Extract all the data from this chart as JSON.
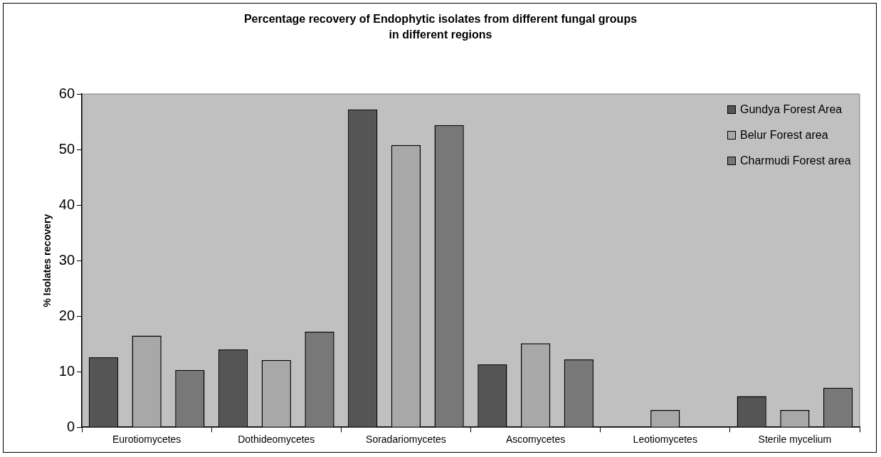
{
  "chart_data": {
    "type": "bar",
    "title": "Percentage recovery of Endophytic isolates from different fungal groups in different regions",
    "ylabel": "% Isolates recovery",
    "categories": [
      "Eurotiomycetes",
      "Dothideomycetes",
      "Soradariomycetes",
      "Ascomycetes",
      "Leotiomycetes",
      "Sterile mycelium"
    ],
    "series": [
      {
        "name": "Gundya Forest Area",
        "color": "#555555",
        "values": [
          12.6,
          14.0,
          57.2,
          11.3,
          0,
          5.6
        ]
      },
      {
        "name": "Belur Forest area",
        "color": "#a8a8a8",
        "values": [
          16.5,
          12.1,
          50.8,
          15.1,
          3.1,
          3.1
        ]
      },
      {
        "name": "Charmudi Forest area",
        "color": "#787878",
        "values": [
          10.3,
          17.2,
          54.4,
          12.2,
          0,
          7.1
        ]
      }
    ],
    "ylim": [
      0,
      60
    ],
    "yticks": [
      0,
      10,
      20,
      30,
      40,
      50,
      60
    ],
    "grid": false,
    "legend": "top right"
  }
}
